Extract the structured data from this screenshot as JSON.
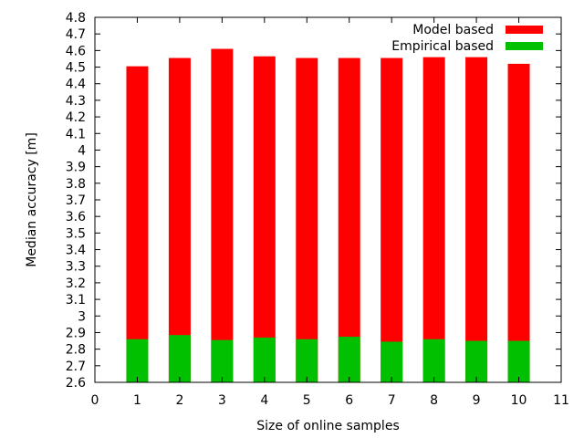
{
  "chart_data": {
    "type": "bar",
    "xlabel": "Size of online samples",
    "ylabel": "Median accuracy [m]",
    "xlim": [
      0,
      11
    ],
    "ylim": [
      2.6,
      4.8
    ],
    "x_ticks": [
      0,
      1,
      2,
      3,
      4,
      5,
      6,
      7,
      8,
      9,
      10,
      11
    ],
    "y_ticks": [
      2.6,
      2.7,
      2.8,
      2.9,
      3.0,
      3.1,
      3.2,
      3.3,
      3.4,
      3.5,
      3.6,
      3.7,
      3.8,
      3.9,
      4.0,
      4.1,
      4.2,
      4.3,
      4.4,
      4.5,
      4.6,
      4.7,
      4.8
    ],
    "y_tick_labels": [
      "2.6",
      "2.7",
      "2.8",
      "2.9",
      "3",
      "3.1",
      "3.2",
      "3.3",
      "3.4",
      "3.5",
      "3.6",
      "3.7",
      "3.8",
      "3.9",
      "4",
      "4.1",
      "4.2",
      "4.3",
      "4.4",
      "4.5",
      "4.6",
      "4.7",
      "4.8"
    ],
    "x": [
      1,
      2,
      3,
      4,
      5,
      6,
      7,
      8,
      9,
      10
    ],
    "grid": false,
    "legend_position": "top-right",
    "series": [
      {
        "name": "Model based",
        "color": "#ff0000",
        "values": [
          4.505,
          4.555,
          4.61,
          4.565,
          4.555,
          4.555,
          4.555,
          4.56,
          4.56,
          4.52
        ]
      },
      {
        "name": "Empirical based",
        "color": "#00c000",
        "values": [
          2.86,
          2.885,
          2.855,
          2.87,
          2.86,
          2.875,
          2.845,
          2.86,
          2.85,
          2.85
        ]
      }
    ]
  }
}
